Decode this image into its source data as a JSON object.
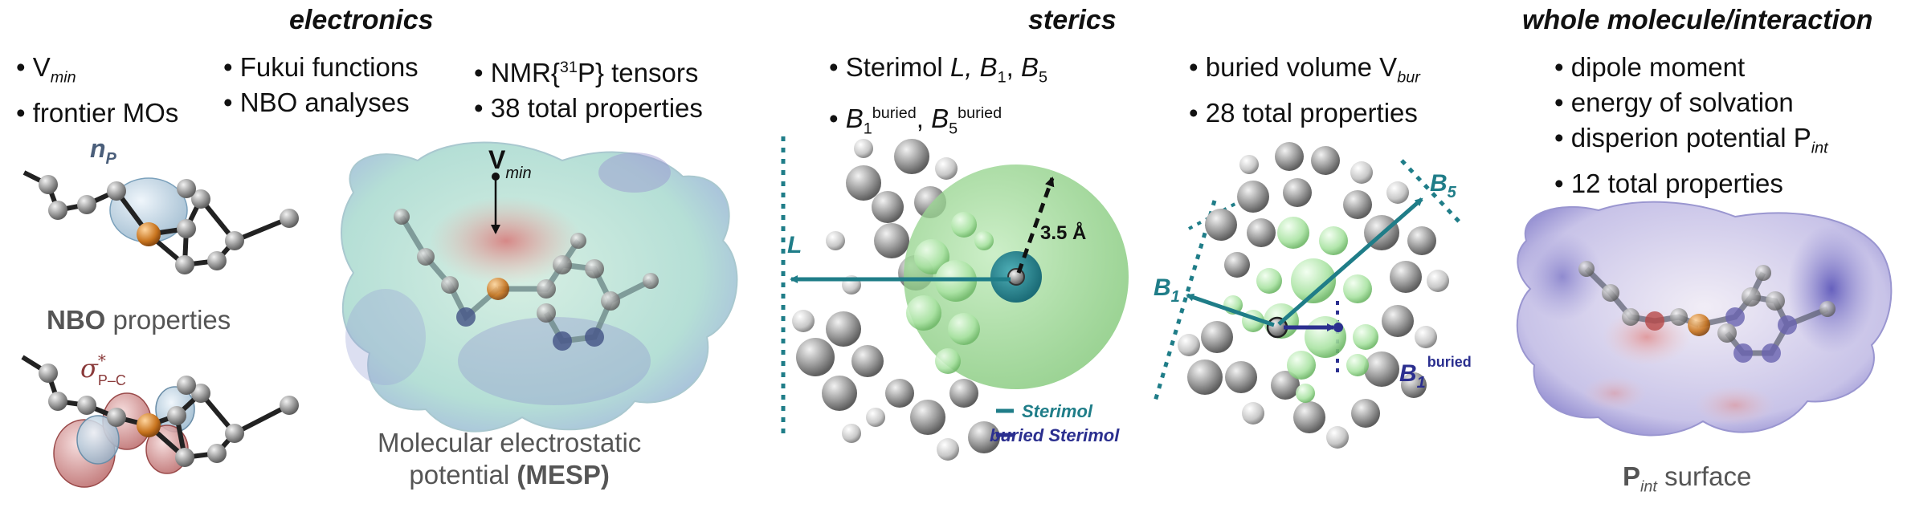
{
  "sections": {
    "electronics": {
      "title": "electronics",
      "col1": {
        "b1_main": "V",
        "b1_sub": "min",
        "b2": "frontier MOs"
      },
      "col2": {
        "b1": "Fukui functions",
        "b2": "NBO analyses"
      },
      "col3": {
        "b1_pre": "NMR{",
        "b1_sup": "31",
        "b1_post": "P} tensors",
        "b2": "38 total properties"
      }
    },
    "sterics": {
      "title": "sterics",
      "col1": {
        "b1_pre": "Sterimol ",
        "b1_L": "L, ",
        "b1_B": "B",
        "b1_B_sub": "1",
        "b1_comma": ", ",
        "b1_B5": "B",
        "b1_B5_sub": "5",
        "b2_B": "B",
        "b2_sub1": "1",
        "b2_sup": "buried",
        "b2_comma": ", ",
        "b2_B5": "B",
        "b2_sub5": "5",
        "b2_sup5": "buried"
      },
      "col2": {
        "b1_main": "buried volume V",
        "b1_sub": "bur",
        "b2": "28 total properties"
      }
    },
    "whole": {
      "title": "whole molecule/interaction",
      "b1": "dipole moment",
      "b2": "energy of solvation",
      "b3_main": "disperion potential P",
      "b3_sub": "int",
      "b4": "12 total properties"
    }
  },
  "captions": {
    "nbo_bold": "NBO",
    "nbo_rest": " properties",
    "mesp_line1": "Molecular electrostatic",
    "mesp_line2_pre": "potential ",
    "mesp_line2_bold": "(MESP)",
    "pint_bold": "P",
    "pint_sub": "int",
    "pint_rest": " surface"
  },
  "labels": {
    "np_main": "n",
    "np_sub": "P",
    "sigma_main": "σ",
    "sigma_sup": "*",
    "sigma_sub": "P–C",
    "vmin_main": "V",
    "vmin_sub": "min",
    "radius": "3.5 Å",
    "L": "L",
    "B1": "B",
    "B1_sub": "1",
    "B5": "B",
    "B5_sub": "5",
    "B1b": "B",
    "B1b_sub": "1",
    "B1b_sup": "buried",
    "legend_sterimol": "Sterimol",
    "legend_buried": "buried Sterimol"
  },
  "colors": {
    "teal": "#1f7d88",
    "navy": "#2b2f8f",
    "green_sphere": "#8fd08a",
    "orange_P": "#d9822b",
    "atom_gray": "#9a9a9a"
  }
}
